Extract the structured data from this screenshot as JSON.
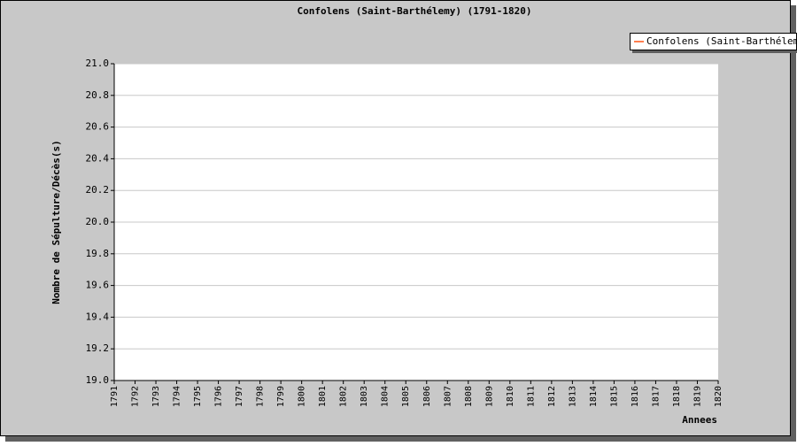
{
  "chart_data": {
    "type": "line",
    "title": "Confolens (Saint-Barthélemy) (1791-1820)",
    "xlabel": "Annees",
    "ylabel": "Nombre de Sépulture/Décès(s)",
    "x": [
      1791,
      1792,
      1793,
      1794,
      1795,
      1796,
      1797,
      1798,
      1799,
      1800,
      1801,
      1802,
      1803,
      1804,
      1805,
      1806,
      1807,
      1808,
      1809,
      1810,
      1811,
      1812,
      1813,
      1814,
      1815,
      1816,
      1817,
      1818,
      1819,
      1820
    ],
    "series": [
      {
        "name": "Confolens (Saint-Barthélemy)",
        "color": "#ff7f50",
        "values": [
          null,
          null,
          null,
          null,
          null,
          null,
          null,
          null,
          null,
          null,
          null,
          null,
          null,
          null,
          null,
          null,
          null,
          null,
          null,
          null,
          null,
          null,
          null,
          null,
          null,
          null,
          null,
          null,
          null,
          null
        ]
      }
    ],
    "xlim": [
      1791,
      1820
    ],
    "xticks": [
      1791,
      1792,
      1793,
      1794,
      1795,
      1796,
      1797,
      1798,
      1799,
      1800,
      1801,
      1802,
      1803,
      1804,
      1805,
      1806,
      1807,
      1808,
      1809,
      1810,
      1811,
      1812,
      1813,
      1814,
      1815,
      1816,
      1817,
      1818,
      1819,
      1820
    ],
    "ylim": [
      19,
      21
    ],
    "yticks": [
      {
        "value": 19,
        "label": "19.0"
      },
      19.2,
      19.4,
      19.6,
      19.8,
      {
        "value": 20,
        "label": "20.0"
      },
      20.2,
      20.4,
      20.6,
      20.8,
      {
        "value": 21,
        "label": "21.0"
      }
    ],
    "grid": true,
    "legend": "top-right"
  }
}
